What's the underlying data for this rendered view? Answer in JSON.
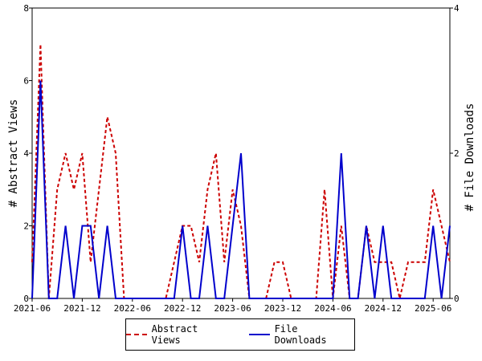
{
  "chart_data": {
    "type": "line",
    "ylabel": "# Abstract Views",
    "y2label": "# File Downloads",
    "ylim": [
      0,
      8
    ],
    "y2lim": [
      0,
      4
    ],
    "y_ticks": [
      "0",
      "2",
      "4",
      "6",
      "8"
    ],
    "y2_ticks": [
      "0",
      "2",
      "4"
    ],
    "x_ticks": [
      "2021-06",
      "2021-12",
      "2022-06",
      "2022-12",
      "2023-06",
      "2023-12",
      "2024-06",
      "2024-12",
      "2025-06"
    ],
    "x_range": [
      "2021-06",
      "2025-08"
    ],
    "legend_position": "bottom",
    "colors": {
      "abstract_views": "#cc0000",
      "file_downloads": "#0000cc"
    },
    "series": [
      {
        "name": "Abstract Views",
        "axis": "left",
        "style": "dashed",
        "x": [
          "2021-06",
          "2021-07",
          "2021-08",
          "2021-09",
          "2021-10",
          "2021-11",
          "2021-12",
          "2022-01",
          "2022-02",
          "2022-03",
          "2022-04",
          "2022-05",
          "2022-06",
          "2022-07",
          "2022-08",
          "2022-09",
          "2022-10",
          "2022-11",
          "2022-12",
          "2023-01",
          "2023-02",
          "2023-03",
          "2023-04",
          "2023-05",
          "2023-06",
          "2023-07",
          "2023-08",
          "2023-09",
          "2023-10",
          "2023-11",
          "2023-12",
          "2024-01",
          "2024-02",
          "2024-03",
          "2024-04",
          "2024-05",
          "2024-06",
          "2024-07",
          "2024-08",
          "2024-09",
          "2024-10",
          "2024-11",
          "2024-12",
          "2025-01",
          "2025-02",
          "2025-03",
          "2025-04",
          "2025-05",
          "2025-06",
          "2025-07",
          "2025-08"
        ],
        "values": [
          1,
          7,
          0,
          3,
          4,
          3,
          4,
          1,
          3,
          5,
          4,
          0,
          0,
          0,
          0,
          0,
          0,
          1,
          2,
          2,
          1,
          3,
          4,
          1,
          3,
          2,
          0,
          0,
          0,
          1,
          1,
          0,
          0,
          0,
          0,
          3,
          0,
          2,
          0,
          0,
          2,
          1,
          1,
          1,
          0,
          1,
          1,
          1,
          3,
          2,
          1
        ]
      },
      {
        "name": "File Downloads",
        "axis": "right",
        "style": "solid",
        "x": [
          "2021-06",
          "2021-07",
          "2021-08",
          "2021-09",
          "2021-10",
          "2021-11",
          "2021-12",
          "2022-01",
          "2022-02",
          "2022-03",
          "2022-04",
          "2022-05",
          "2022-06",
          "2022-07",
          "2022-08",
          "2022-09",
          "2022-10",
          "2022-11",
          "2022-12",
          "2023-01",
          "2023-02",
          "2023-03",
          "2023-04",
          "2023-05",
          "2023-06",
          "2023-07",
          "2023-08",
          "2023-09",
          "2023-10",
          "2023-11",
          "2023-12",
          "2024-01",
          "2024-02",
          "2024-03",
          "2024-04",
          "2024-05",
          "2024-06",
          "2024-07",
          "2024-08",
          "2024-09",
          "2024-10",
          "2024-11",
          "2024-12",
          "2025-01",
          "2025-02",
          "2025-03",
          "2025-04",
          "2025-05",
          "2025-06",
          "2025-07",
          "2025-08"
        ],
        "values": [
          0,
          3,
          0,
          0,
          1,
          0,
          1,
          1,
          0,
          1,
          0,
          0,
          0,
          0,
          0,
          0,
          0,
          0,
          1,
          0,
          0,
          1,
          0,
          0,
          1,
          2,
          0,
          0,
          0,
          0,
          0,
          0,
          0,
          0,
          0,
          0,
          0,
          2,
          0,
          0,
          1,
          0,
          1,
          0,
          0,
          0,
          0,
          0,
          1,
          0,
          1
        ]
      }
    ]
  }
}
